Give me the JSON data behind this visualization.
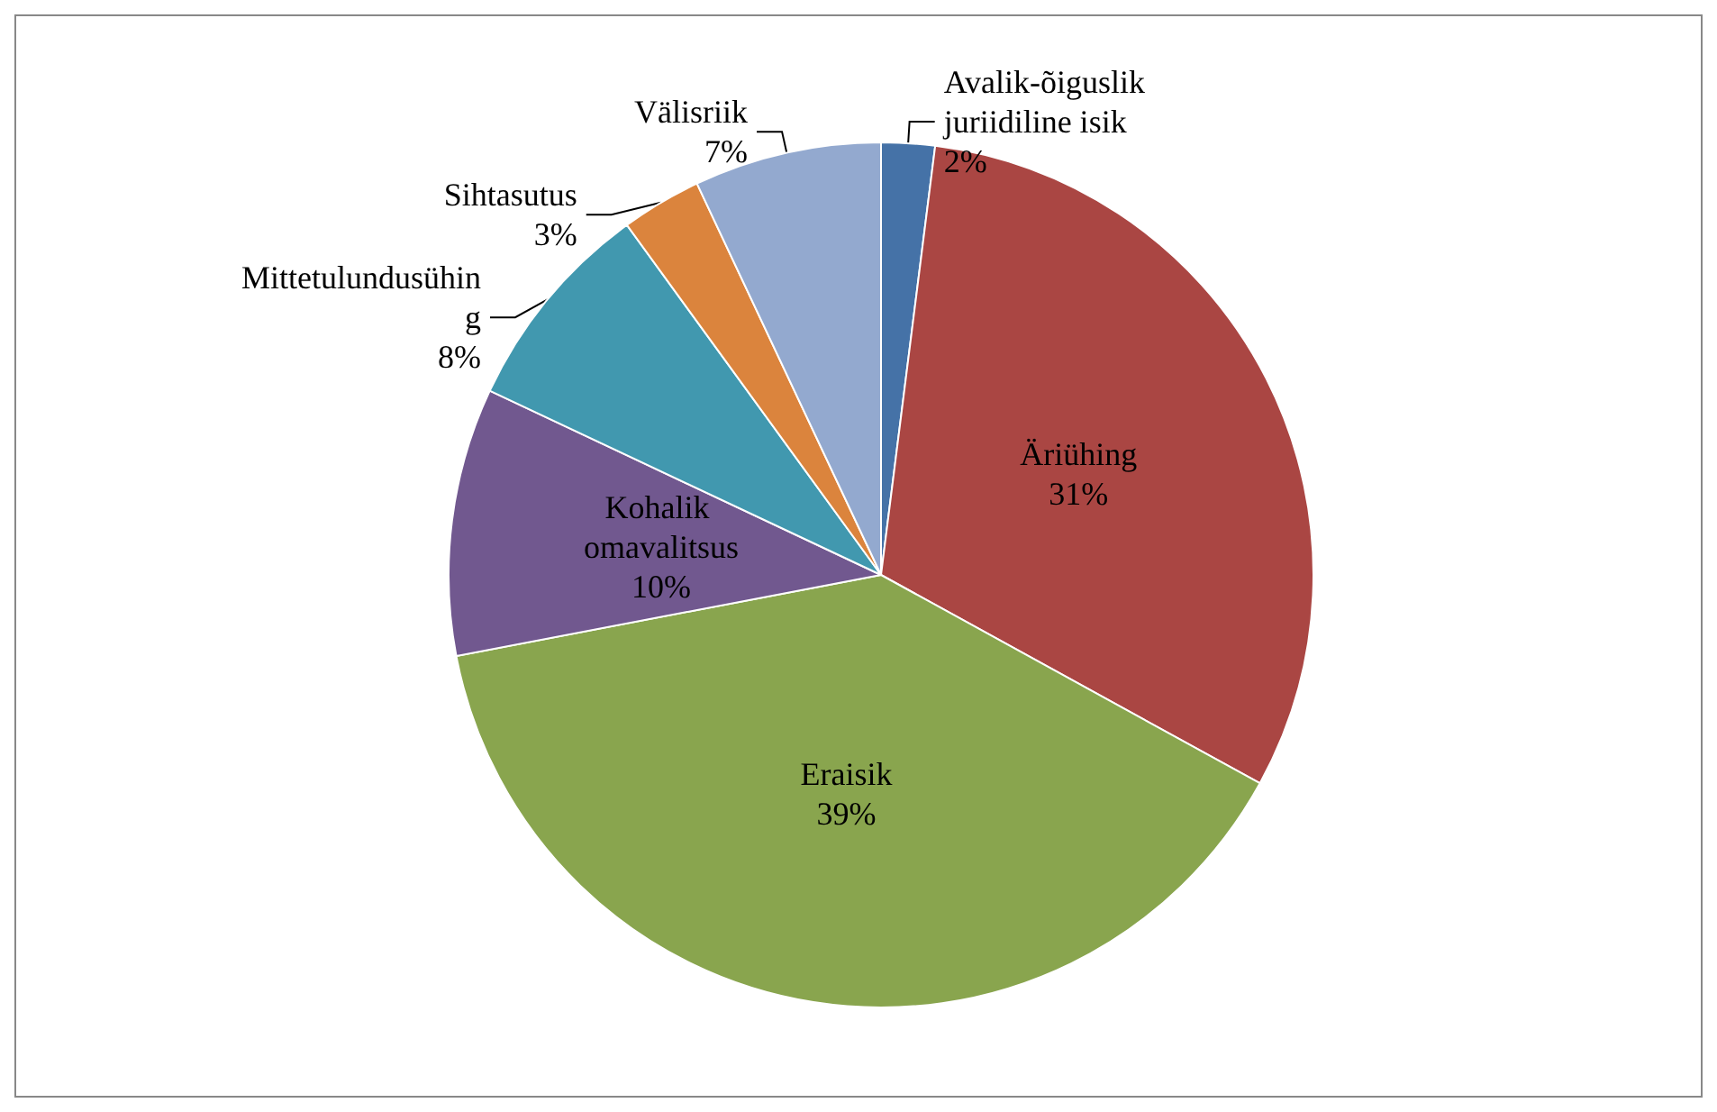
{
  "chart_data": {
    "type": "pie",
    "categories": [
      "Avalik-õiguslik juriidiline isik",
      "Äriühing",
      "Eraisik",
      "Kohalik omavalitsus",
      "Mittetulundusühing",
      "Sihtasutus",
      "Välisriik"
    ],
    "values": [
      2,
      31,
      39,
      10,
      8,
      3,
      7
    ],
    "value_labels": [
      "2%",
      "31%",
      "39%",
      "10%",
      "8%",
      "3%",
      "7%"
    ],
    "colors": [
      "#4572a7",
      "#aa4643",
      "#89a54e",
      "#71588f",
      "#4198af",
      "#db843d",
      "#93a9cf"
    ],
    "legend": false
  }
}
